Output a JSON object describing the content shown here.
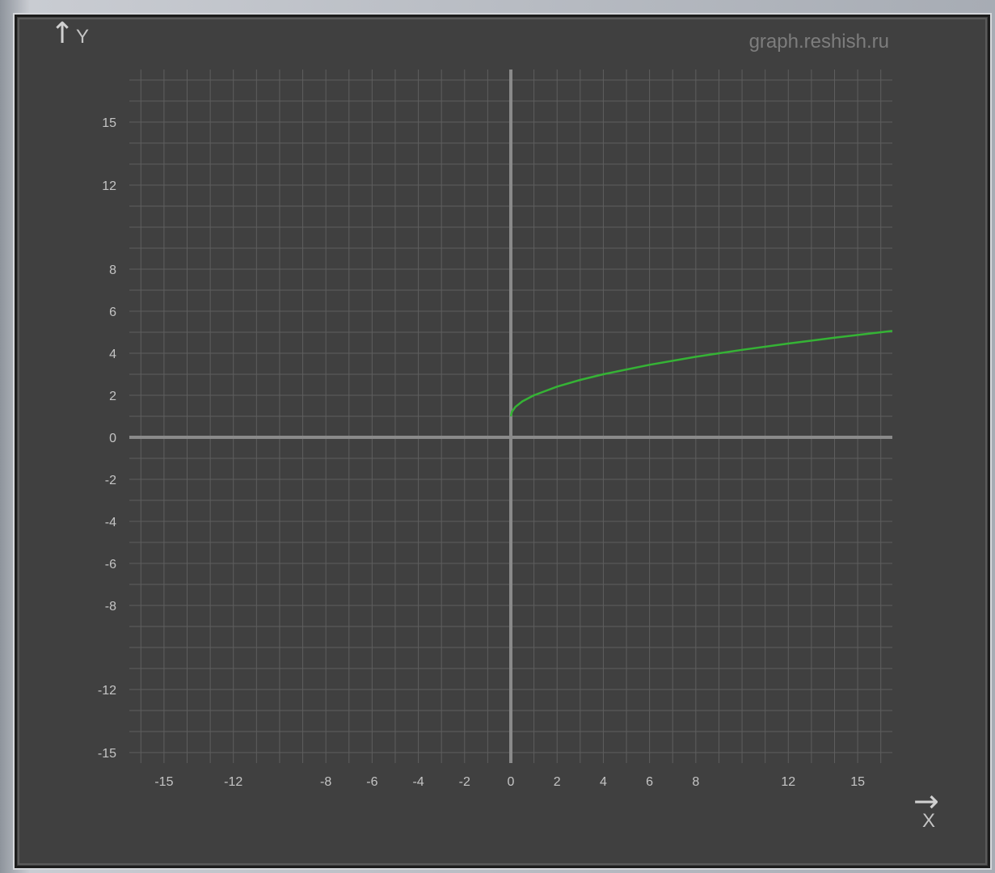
{
  "watermark": "graph.reshish.ru",
  "chart_data": {
    "type": "line",
    "title": "",
    "xlabel": "X",
    "ylabel": "Y",
    "xlim": [
      -16.5,
      16.5
    ],
    "ylim": [
      -15.5,
      17.5
    ],
    "grid": true,
    "x_tick_labels": [
      -15,
      -12,
      -8,
      -6,
      -4,
      -2,
      0,
      2,
      4,
      6,
      8,
      12,
      15
    ],
    "y_tick_labels": [
      15,
      12,
      8,
      6,
      4,
      2,
      0,
      -2,
      -4,
      -6,
      -8,
      -12,
      -15
    ],
    "series": [
      {
        "color": "#35b335",
        "x": [
          0,
          0.05,
          0.2,
          0.5,
          1,
          2,
          3,
          4,
          6,
          8,
          10,
          12,
          14,
          16.5
        ],
        "y": [
          1.0,
          1.22,
          1.45,
          1.71,
          2.0,
          2.41,
          2.73,
          3.0,
          3.45,
          3.83,
          4.16,
          4.46,
          4.74,
          5.06
        ]
      }
    ]
  },
  "colors": {
    "background": "#404040",
    "grid": "#5e5e5e",
    "axis": "#8a8a8a",
    "curve": "#35b335",
    "text": "#c4c4c4",
    "watermark": "#7d7d7d"
  }
}
